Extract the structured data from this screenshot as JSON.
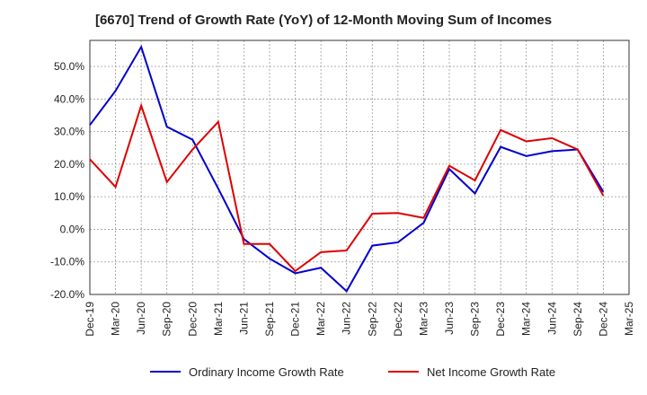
{
  "chart_data": {
    "type": "line",
    "title": "[6670]  Trend of Growth Rate (YoY) of 12-Month Moving Sum of Incomes",
    "xlabel": "",
    "ylabel": "",
    "categories": [
      "Dec-19",
      "Mar-20",
      "Jun-20",
      "Sep-20",
      "Dec-20",
      "Mar-21",
      "Jun-21",
      "Sep-21",
      "Dec-21",
      "Mar-22",
      "Jun-22",
      "Sep-22",
      "Dec-22",
      "Mar-23",
      "Jun-23",
      "Sep-23",
      "Dec-23",
      "Mar-24",
      "Jun-24",
      "Sep-24",
      "Dec-24",
      "Mar-25"
    ],
    "ylim": [
      -20,
      58
    ],
    "yticks": [
      -20,
      -10,
      0,
      10,
      20,
      30,
      40,
      50
    ],
    "ytick_labels": [
      "-20.0%",
      "-10.0%",
      "0.0%",
      "10.0%",
      "20.0%",
      "30.0%",
      "40.0%",
      "50.0%"
    ],
    "grid": true,
    "legend_position": "bottom",
    "series": [
      {
        "name": "Ordinary Income Growth Rate",
        "color": "#0000cc",
        "values": [
          32.0,
          42.5,
          56.0,
          31.5,
          27.5,
          12.5,
          -3.0,
          -9.0,
          -13.5,
          -11.8,
          -19.0,
          -5.0,
          -4.0,
          2.0,
          18.5,
          11.0,
          25.3,
          22.5,
          24.0,
          24.5,
          11.5,
          null
        ]
      },
      {
        "name": "Net Income Growth Rate",
        "color": "#dd0000",
        "values": [
          21.5,
          13.0,
          38.0,
          14.5,
          24.5,
          33.0,
          -4.5,
          -4.5,
          -12.8,
          -7.0,
          -6.5,
          4.8,
          5.0,
          3.5,
          19.5,
          15.0,
          30.5,
          27.0,
          28.0,
          24.5,
          10.3,
          null
        ]
      }
    ]
  }
}
